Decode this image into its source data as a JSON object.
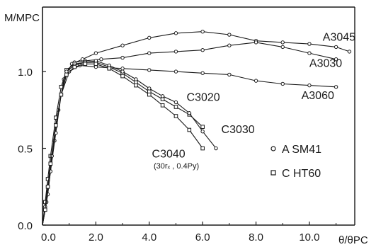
{
  "chart_data": {
    "type": "line",
    "ylabel": "M/MPC",
    "xlabel": "θ/θPC",
    "xlim": [
      0,
      11.7
    ],
    "ylim": [
      0,
      1.42
    ],
    "x_ticks": [
      "0.0",
      "2.0",
      "4.0",
      "6.0",
      "8.0",
      "10.0"
    ],
    "y_ticks": [
      "0.0",
      "0.5",
      "1.0"
    ],
    "grid": false,
    "legend": {
      "placement": "right-middle",
      "entries": [
        {
          "marker": "circle",
          "text": "A  SM41"
        },
        {
          "marker": "square",
          "text": "C  HT60"
        }
      ]
    },
    "note": "(30rₓ , 0.4Py)",
    "series": [
      {
        "name": "A3045",
        "marker": "circle",
        "x": [
          0.0,
          0.1,
          0.2,
          0.3,
          0.45,
          0.6,
          0.8,
          1.1,
          1.5,
          2.0,
          3.0,
          4.0,
          5.0,
          6.0,
          7.0,
          8.0,
          9.0,
          10.0,
          11.0,
          11.5
        ],
        "y": [
          0.0,
          0.1,
          0.2,
          0.35,
          0.55,
          0.75,
          0.95,
          1.05,
          1.08,
          1.12,
          1.17,
          1.22,
          1.25,
          1.26,
          1.24,
          1.2,
          1.19,
          1.18,
          1.16,
          1.13
        ]
      },
      {
        "name": "A3030",
        "marker": "circle",
        "x": [
          0.0,
          0.1,
          0.2,
          0.35,
          0.5,
          0.7,
          0.9,
          1.2,
          1.6,
          2.2,
          3.0,
          4.0,
          5.0,
          6.0,
          7.0,
          8.0,
          9.0,
          10.0,
          11.0
        ],
        "y": [
          0.0,
          0.12,
          0.25,
          0.45,
          0.65,
          0.85,
          1.0,
          1.06,
          1.07,
          1.08,
          1.09,
          1.12,
          1.13,
          1.14,
          1.17,
          1.19,
          1.16,
          1.12,
          1.08
        ]
      },
      {
        "name": "A3060",
        "marker": "circle",
        "x": [
          0.0,
          0.15,
          0.3,
          0.5,
          0.7,
          1.0,
          1.4,
          2.0,
          3.0,
          4.0,
          5.0,
          6.0,
          7.0,
          8.0,
          9.0,
          10.0,
          11.0
        ],
        "y": [
          0.0,
          0.15,
          0.35,
          0.6,
          0.85,
          1.0,
          1.04,
          1.03,
          1.02,
          1.01,
          1.0,
          0.99,
          0.98,
          0.94,
          0.92,
          0.91,
          0.9
        ]
      },
      {
        "name": "C3020",
        "marker": "square",
        "x": [
          0.0,
          0.1,
          0.2,
          0.3,
          0.5,
          0.7,
          0.9,
          1.2,
          1.6,
          2.0,
          2.5,
          3.0,
          3.5,
          4.0,
          4.5,
          5.0,
          5.5,
          6.0
        ],
        "y": [
          0.0,
          0.15,
          0.3,
          0.45,
          0.7,
          0.9,
          1.01,
          1.05,
          1.06,
          1.06,
          1.03,
          0.99,
          0.93,
          0.87,
          0.82,
          0.77,
          0.72,
          0.64
        ]
      },
      {
        "name": "C3030",
        "marker": "circle",
        "x": [
          0.0,
          0.1,
          0.2,
          0.35,
          0.5,
          0.7,
          0.9,
          1.2,
          1.6,
          2.0,
          2.5,
          3.0,
          3.5,
          4.0,
          4.5,
          5.0,
          5.5,
          6.0,
          6.5
        ],
        "y": [
          0.0,
          0.12,
          0.25,
          0.45,
          0.65,
          0.85,
          1.0,
          1.04,
          1.06,
          1.07,
          1.04,
          1.0,
          0.95,
          0.89,
          0.84,
          0.8,
          0.73,
          0.61,
          0.5
        ]
      },
      {
        "name": "C3040",
        "marker": "square",
        "x": [
          0.0,
          0.1,
          0.2,
          0.3,
          0.5,
          0.7,
          0.9,
          1.2,
          1.6,
          2.0,
          2.5,
          3.0,
          3.5,
          4.0,
          4.5,
          5.0,
          5.5,
          6.0
        ],
        "y": [
          0.0,
          0.1,
          0.25,
          0.4,
          0.65,
          0.85,
          0.98,
          1.03,
          1.05,
          1.05,
          1.02,
          0.97,
          0.91,
          0.85,
          0.78,
          0.71,
          0.62,
          0.5
        ]
      }
    ],
    "labels": [
      {
        "series": "A3045",
        "text": "A3045",
        "x": 10.5,
        "y": 1.2
      },
      {
        "series": "A3030",
        "text": "A3030",
        "x": 10.0,
        "y": 1.03
      },
      {
        "series": "A3060",
        "text": "A3060",
        "x": 9.7,
        "y": 0.82
      },
      {
        "series": "C3020",
        "text": "C3020",
        "x": 5.4,
        "y": 0.81
      },
      {
        "series": "C3030",
        "text": "C3030",
        "x": 6.7,
        "y": 0.6
      },
      {
        "series": "C3040",
        "text": "C3040",
        "x": 4.1,
        "y": 0.44
      }
    ]
  }
}
